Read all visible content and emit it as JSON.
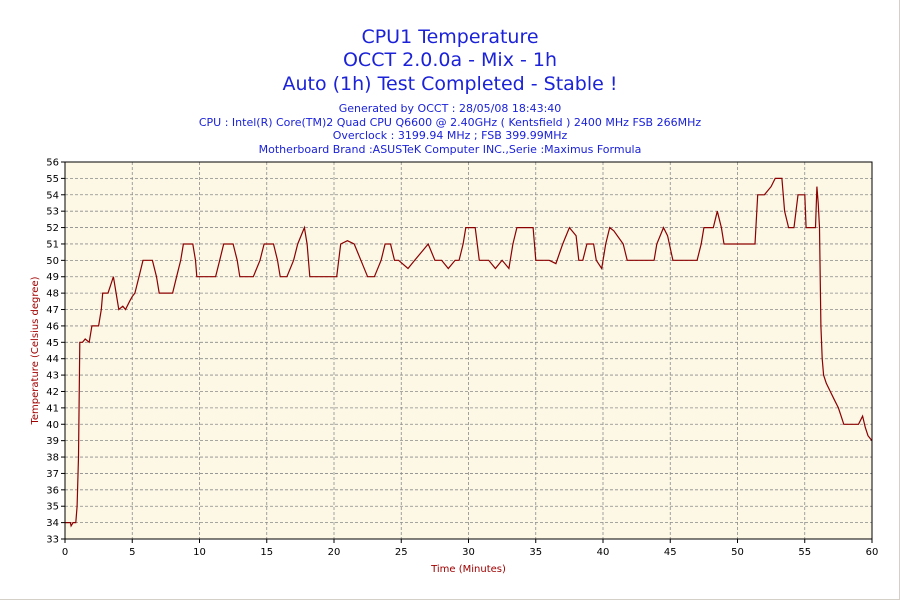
{
  "header": {
    "title1": "CPU1 Temperature",
    "title2": "OCCT 2.0.0a - Mix - 1h",
    "title3": "Auto (1h) Test Completed - Stable !",
    "generated": "Generated by OCCT : 28/05/08 18:43:40",
    "cpu": "CPU : Intel(R) Core(TM)2 Quad CPU Q6600 @ 2.40GHz ( Kentsfield ) 2400 MHz FSB 266MHz",
    "overclock": "Overclock : 3199.94 MHz ; FSB 399.99MHz",
    "motherboard": "Motherboard Brand :ASUSTeK Computer INC.,Serie :Maximus Formula"
  },
  "colors": {
    "title": "#1b22d8",
    "line": "#8b0000",
    "axis_label": "#a00000",
    "plot_bg": "#fdf8e6",
    "grid": "#8a8a8a"
  },
  "chart_data": {
    "type": "line",
    "xlabel": "Time (Minutes)",
    "ylabel": "Temperature (Celsius degree)",
    "xlim": [
      0,
      60
    ],
    "ylim": [
      33,
      56
    ],
    "xticks": [
      0,
      5,
      10,
      15,
      20,
      25,
      30,
      35,
      40,
      45,
      50,
      55,
      60
    ],
    "yticks": [
      33,
      34,
      35,
      36,
      37,
      38,
      39,
      40,
      41,
      42,
      43,
      44,
      45,
      46,
      47,
      48,
      49,
      50,
      51,
      52,
      53,
      54,
      55,
      56
    ],
    "grid": true,
    "series": [
      {
        "values": [
          [
            0,
            34
          ],
          [
            0.4,
            34
          ],
          [
            0.45,
            33.8
          ],
          [
            0.6,
            34
          ],
          [
            0.8,
            34
          ],
          [
            0.9,
            35
          ],
          [
            1.0,
            38
          ],
          [
            1.1,
            45
          ],
          [
            1.3,
            45
          ],
          [
            1.5,
            45.2
          ],
          [
            1.8,
            45
          ],
          [
            2.0,
            46
          ],
          [
            2.5,
            46
          ],
          [
            2.7,
            47
          ],
          [
            2.8,
            48
          ],
          [
            3.2,
            48
          ],
          [
            3.4,
            48.5
          ],
          [
            3.6,
            49
          ],
          [
            3.8,
            48
          ],
          [
            4.0,
            47
          ],
          [
            4.3,
            47.2
          ],
          [
            4.5,
            47
          ],
          [
            4.8,
            47.5
          ],
          [
            5.0,
            47.8
          ],
          [
            5.2,
            48
          ],
          [
            5.5,
            49
          ],
          [
            5.8,
            50
          ],
          [
            6.5,
            50
          ],
          [
            6.8,
            49
          ],
          [
            7.0,
            48
          ],
          [
            7.5,
            48
          ],
          [
            8.0,
            48
          ],
          [
            8.3,
            49
          ],
          [
            8.6,
            50
          ],
          [
            8.8,
            51
          ],
          [
            9.5,
            51
          ],
          [
            9.7,
            50
          ],
          [
            9.8,
            49
          ],
          [
            10.5,
            49
          ],
          [
            11.2,
            49
          ],
          [
            11.5,
            50
          ],
          [
            11.8,
            51
          ],
          [
            12.5,
            51
          ],
          [
            12.8,
            50
          ],
          [
            13.0,
            49
          ],
          [
            14.0,
            49
          ],
          [
            14.5,
            50
          ],
          [
            14.8,
            51
          ],
          [
            15.5,
            51
          ],
          [
            15.8,
            50
          ],
          [
            16.0,
            49
          ],
          [
            16.5,
            49
          ],
          [
            17.0,
            50
          ],
          [
            17.3,
            51
          ],
          [
            17.8,
            52
          ],
          [
            18.0,
            51
          ],
          [
            18.2,
            49
          ],
          [
            19.5,
            49
          ],
          [
            20.2,
            49
          ],
          [
            20.5,
            51
          ],
          [
            21.0,
            51.2
          ],
          [
            21.5,
            51
          ],
          [
            22.0,
            50
          ],
          [
            22.5,
            49
          ],
          [
            23.0,
            49
          ],
          [
            23.5,
            50
          ],
          [
            23.8,
            51
          ],
          [
            24.2,
            51
          ],
          [
            24.5,
            50
          ],
          [
            24.8,
            50
          ],
          [
            25.5,
            49.5
          ],
          [
            26.0,
            50
          ],
          [
            26.5,
            50.5
          ],
          [
            27.0,
            51
          ],
          [
            27.5,
            50
          ],
          [
            28.0,
            50
          ],
          [
            28.5,
            49.5
          ],
          [
            29.0,
            50
          ],
          [
            29.3,
            50
          ],
          [
            29.6,
            51
          ],
          [
            29.8,
            52
          ],
          [
            30.5,
            52
          ],
          [
            30.8,
            50
          ],
          [
            31.5,
            50
          ],
          [
            32.0,
            49.5
          ],
          [
            32.5,
            50
          ],
          [
            33.0,
            49.5
          ],
          [
            33.3,
            51
          ],
          [
            33.6,
            52
          ],
          [
            34.8,
            52
          ],
          [
            35.0,
            50
          ],
          [
            36.0,
            50
          ],
          [
            36.5,
            49.8
          ],
          [
            37.0,
            51
          ],
          [
            37.5,
            52
          ],
          [
            38.0,
            51.5
          ],
          [
            38.2,
            50
          ],
          [
            38.5,
            50
          ],
          [
            38.8,
            51
          ],
          [
            39.3,
            51
          ],
          [
            39.5,
            50
          ],
          [
            39.9,
            49.5
          ],
          [
            40.2,
            51
          ],
          [
            40.5,
            52
          ],
          [
            40.8,
            51.8
          ],
          [
            41.5,
            51
          ],
          [
            41.8,
            50
          ],
          [
            43.5,
            50
          ],
          [
            43.8,
            50
          ],
          [
            44.0,
            51
          ],
          [
            44.5,
            52
          ],
          [
            44.8,
            51.5
          ],
          [
            45.2,
            50
          ],
          [
            47.0,
            50
          ],
          [
            47.3,
            51
          ],
          [
            47.5,
            52
          ],
          [
            48.2,
            52
          ],
          [
            48.5,
            53
          ],
          [
            48.8,
            52
          ],
          [
            49.0,
            51
          ],
          [
            50.0,
            51
          ],
          [
            51.0,
            51
          ],
          [
            51.3,
            51
          ],
          [
            51.5,
            54
          ],
          [
            52.0,
            54
          ],
          [
            52.5,
            54.5
          ],
          [
            52.8,
            55
          ],
          [
            53.3,
            55
          ],
          [
            53.5,
            53
          ],
          [
            53.8,
            52
          ],
          [
            54.2,
            52
          ],
          [
            54.5,
            54
          ],
          [
            55.0,
            54
          ],
          [
            55.1,
            52
          ],
          [
            55.8,
            52
          ],
          [
            55.9,
            54.5
          ],
          [
            56.0,
            53.5
          ],
          [
            56.1,
            52
          ],
          [
            56.2,
            46
          ],
          [
            56.3,
            44
          ],
          [
            56.4,
            43
          ],
          [
            56.6,
            42.5
          ],
          [
            56.9,
            42
          ],
          [
            57.2,
            41.5
          ],
          [
            57.5,
            41
          ],
          [
            57.7,
            40.5
          ],
          [
            57.9,
            40
          ],
          [
            58.5,
            40
          ],
          [
            59.0,
            40
          ],
          [
            59.3,
            40.5
          ],
          [
            59.5,
            39.8
          ],
          [
            59.7,
            39.3
          ],
          [
            60,
            39
          ]
        ]
      }
    ]
  }
}
